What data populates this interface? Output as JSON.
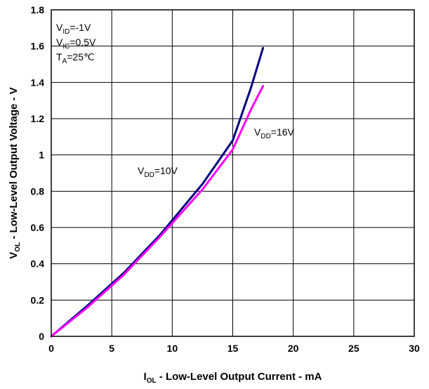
{
  "chart_data": {
    "type": "line",
    "xlabel": {
      "main": "I",
      "sub": "OL",
      "rest": " - Low-Level Output Current - mA"
    },
    "ylabel": {
      "main": "V",
      "sub": "OL",
      "rest": " - Low-Level Output Voltage - V"
    },
    "xlim": [
      0,
      30
    ],
    "ylim": [
      0,
      1.8
    ],
    "x_ticks": [
      0,
      5,
      10,
      15,
      20,
      25,
      30
    ],
    "x_tick_labels": [
      "0",
      "5",
      "10",
      "15",
      "20",
      "25",
      "30"
    ],
    "y_ticks": [
      0,
      0.2,
      0.4,
      0.6,
      0.8,
      1.0,
      1.2,
      1.4,
      1.6,
      1.8
    ],
    "y_tick_labels": [
      "0",
      "0.2",
      "0.4",
      "0.6",
      "0.8",
      "1",
      "1.2",
      "1.4",
      "1.6",
      "1.8"
    ],
    "grid": true,
    "conditions": [
      {
        "main": "V",
        "sub": "ID",
        "rest": "=-1V"
      },
      {
        "main": "V",
        "sub": "IC",
        "rest": "=0.5V"
      },
      {
        "main": "T",
        "sub": "A",
        "rest": "=25℃"
      }
    ],
    "series": [
      {
        "name": "VDD=10V",
        "label": {
          "main": "V",
          "sub": "DD",
          "rest": "=10V"
        },
        "color": "#000080",
        "x": [
          0,
          3,
          6,
          9,
          12.5,
          15,
          16.5,
          17.5
        ],
        "y": [
          0,
          0.17,
          0.35,
          0.56,
          0.84,
          1.08,
          1.37,
          1.59
        ]
      },
      {
        "name": "VDD=16V",
        "label": {
          "main": "V",
          "sub": "DD",
          "rest": "=16V"
        },
        "color": "#ff00ff",
        "x": [
          0,
          3,
          6,
          9,
          12.5,
          15,
          16.5,
          17.5
        ],
        "y": [
          0,
          0.16,
          0.34,
          0.55,
          0.81,
          1.03,
          1.25,
          1.38
        ]
      }
    ]
  }
}
